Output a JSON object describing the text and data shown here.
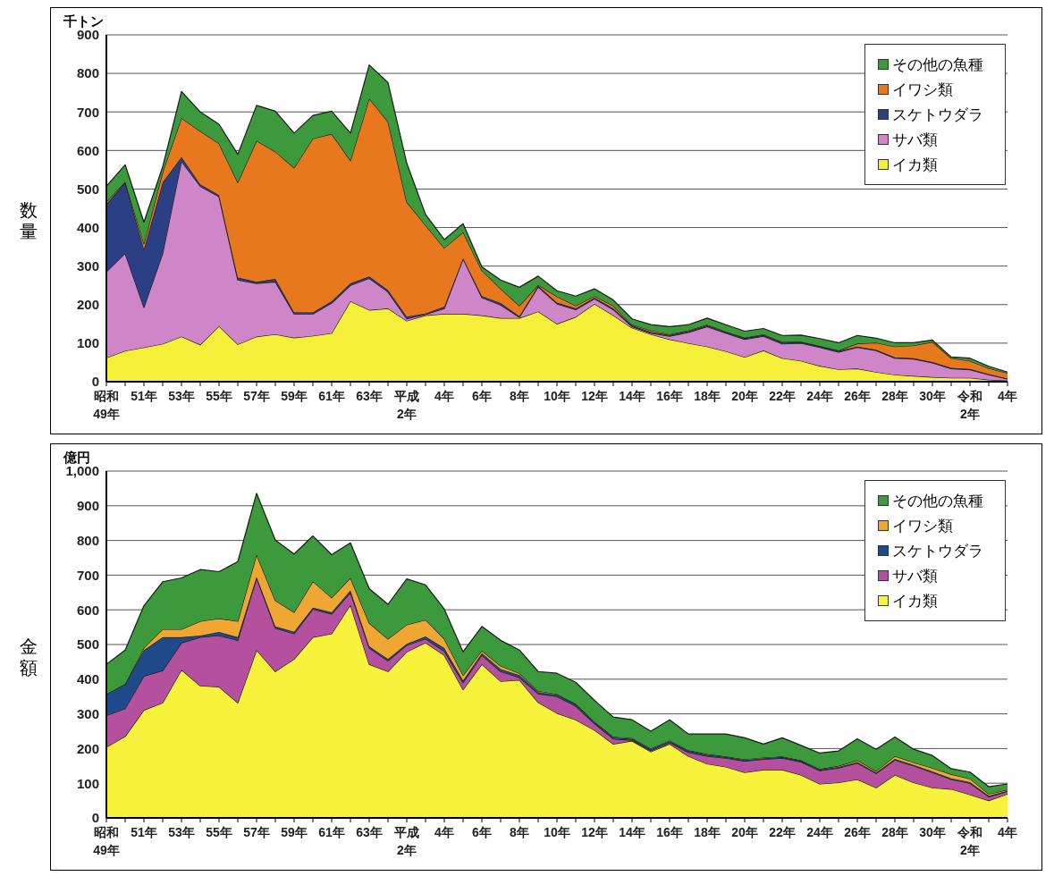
{
  "chart_data": [
    {
      "type": "area",
      "stacked": true,
      "ylabel": "数量",
      "annotations": [
        "千トン"
      ],
      "categories": [
        "昭和\n49年",
        null,
        "51年",
        null,
        "53年",
        null,
        "55年",
        null,
        "57年",
        null,
        "59年",
        null,
        "61年",
        null,
        "63年",
        null,
        "平成\n2年",
        null,
        "4年",
        null,
        "6年",
        null,
        "8年",
        null,
        "10年",
        null,
        "12年",
        null,
        "14年",
        null,
        "16年",
        null,
        "18年",
        null,
        "20年",
        null,
        "22年",
        null,
        "24年",
        null,
        "26年",
        null,
        "28年",
        null,
        "30年",
        null,
        "令和\n2年",
        null,
        "4年"
      ],
      "series": [
        {
          "name": "イカ類",
          "color": "#f5ef3a",
          "values": [
            62,
            80,
            89,
            98,
            117,
            96,
            144,
            97,
            117,
            123,
            114,
            119,
            126,
            209,
            186,
            190,
            158,
            172,
            176,
            176,
            172,
            165,
            165,
            182,
            150,
            168,
            202,
            172,
            140,
            123,
            110,
            100,
            91,
            79,
            64,
            81,
            61,
            54,
            41,
            32,
            34,
            25,
            18,
            15,
            12,
            10,
            10,
            5,
            3
          ]
        },
        {
          "name": "サバ類",
          "color": "#cf86c8",
          "values": [
            223,
            253,
            104,
            235,
            455,
            411,
            336,
            167,
            138,
            136,
            62,
            57,
            78,
            41,
            82,
            43,
            5,
            3,
            14,
            143,
            46,
            34,
            2,
            64,
            52,
            19,
            13,
            15,
            3,
            3,
            8,
            28,
            52,
            47,
            46,
            37,
            37,
            46,
            48,
            45,
            55,
            56,
            43,
            44,
            37,
            24,
            21,
            13,
            4
          ]
        },
        {
          "name": "スケトウダラ",
          "color": "#2b3f85",
          "values": [
            176,
            184,
            151,
            184,
            11,
            5,
            4,
            6,
            4,
            8,
            4,
            4,
            5,
            5,
            5,
            5,
            6,
            2,
            5,
            1,
            4,
            5,
            3,
            3,
            3,
            3,
            3,
            3,
            3,
            3,
            3,
            3,
            3,
            3,
            3,
            3,
            3,
            3,
            3,
            3,
            2,
            2,
            2,
            2,
            2,
            2,
            2,
            2,
            1
          ]
        },
        {
          "name": "イワシ類",
          "color": "#e8781e",
          "values": [
            6,
            2,
            14,
            27,
            101,
            138,
            134,
            247,
            366,
            330,
            375,
            451,
            434,
            319,
            462,
            437,
            297,
            229,
            152,
            68,
            67,
            37,
            27,
            2,
            16,
            7,
            4,
            7,
            2,
            4,
            2,
            2,
            2,
            1,
            1,
            2,
            2,
            1,
            1,
            1,
            8,
            18,
            28,
            33,
            52,
            25,
            21,
            15,
            14
          ]
        },
        {
          "name": "その他の魚種",
          "color": "#3c9a3c",
          "values": [
            40,
            44,
            56,
            14,
            69,
            50,
            50,
            73,
            92,
            105,
            90,
            60,
            59,
            71,
            87,
            101,
            101,
            28,
            22,
            22,
            9,
            23,
            48,
            23,
            15,
            25,
            19,
            15,
            15,
            15,
            20,
            15,
            17,
            18,
            17,
            15,
            17,
            17,
            19,
            20,
            21,
            12,
            10,
            7,
            5,
            3,
            7,
            5,
            3
          ]
        }
      ],
      "ylim": [
        0,
        900
      ],
      "yticks": [
        0,
        100,
        200,
        300,
        400,
        500,
        600,
        700,
        800,
        900
      ],
      "grid": "y",
      "legend": "top right"
    },
    {
      "type": "area",
      "stacked": true,
      "ylabel": "金額",
      "annotations": [
        "億円"
      ],
      "categories": [
        "昭和\n49年",
        null,
        "51年",
        null,
        "53年",
        null,
        "55年",
        null,
        "57年",
        null,
        "59年",
        null,
        "61年",
        null,
        "63年",
        null,
        "平成\n2年",
        null,
        "4年",
        null,
        "6年",
        null,
        "8年",
        null,
        "10年",
        null,
        "12年",
        null,
        "14年",
        null,
        "16年",
        null,
        "18年",
        null,
        "20年",
        null,
        "22年",
        null,
        "24年",
        null,
        "26年",
        null,
        "28年",
        null,
        "30年",
        null,
        "令和\n2年",
        null,
        "4年"
      ],
      "series": [
        {
          "name": "イカ類",
          "color": "#f7f23c",
          "values": [
            204,
            235,
            311,
            332,
            427,
            381,
            378,
            332,
            484,
            422,
            458,
            521,
            531,
            614,
            443,
            422,
            479,
            505,
            469,
            370,
            443,
            394,
            398,
            333,
            302,
            283,
            253,
            213,
            222,
            191,
            213,
            178,
            156,
            147,
            131,
            139,
            139,
            124,
            98,
            102,
            111,
            87,
            124,
            102,
            87,
            83,
            67,
            50,
            69
          ]
        },
        {
          "name": "サバ類",
          "color": "#b5509f",
          "values": [
            91,
            80,
            98,
            93,
            78,
            140,
            148,
            180,
            208,
            125,
            73,
            81,
            57,
            36,
            47,
            31,
            19,
            11,
            12,
            20,
            26,
            28,
            7,
            25,
            48,
            39,
            19,
            15,
            2,
            3,
            4,
            11,
            22,
            25,
            33,
            30,
            33,
            37,
            38,
            42,
            47,
            41,
            43,
            48,
            44,
            28,
            33,
            11,
            7
          ]
        },
        {
          "name": "スケトウダラ",
          "color": "#1f4a8a",
          "values": [
            62,
            71,
            75,
            96,
            16,
            5,
            10,
            9,
            3,
            5,
            6,
            4,
            5,
            6,
            5,
            5,
            4,
            7,
            9,
            6,
            6,
            7,
            7,
            5,
            5,
            5,
            4,
            4,
            4,
            4,
            4,
            4,
            4,
            3,
            3,
            3,
            3,
            3,
            3,
            3,
            3,
            3,
            3,
            3,
            3,
            3,
            3,
            3,
            2
          ]
        },
        {
          "name": "イワシ類",
          "color": "#f0a632",
          "values": [
            0,
            0,
            6,
            23,
            23,
            41,
            39,
            46,
            64,
            75,
            56,
            76,
            42,
            36,
            67,
            58,
            55,
            48,
            26,
            15,
            7,
            9,
            5,
            3,
            2,
            2,
            2,
            2,
            2,
            2,
            2,
            2,
            2,
            2,
            2,
            2,
            2,
            2,
            2,
            3,
            5,
            4,
            8,
            7,
            10,
            12,
            10,
            5,
            3
          ]
        },
        {
          "name": "その他の魚種",
          "color": "#3c9a3c",
          "values": [
            86,
            98,
            122,
            137,
            148,
            149,
            135,
            172,
            177,
            174,
            168,
            131,
            124,
            101,
            99,
            100,
            132,
            101,
            86,
            68,
            70,
            74,
            67,
            56,
            60,
            62,
            61,
            57,
            53,
            50,
            60,
            47,
            58,
            65,
            62,
            39,
            54,
            43,
            46,
            43,
            62,
            63,
            55,
            38,
            36,
            16,
            19,
            21,
            17
          ]
        }
      ],
      "ylim": [
        0,
        1000
      ],
      "yticks": [
        0,
        100,
        200,
        300,
        400,
        500,
        600,
        700,
        800,
        900,
        {
          "value": 1000,
          "label": "1,000"
        }
      ],
      "grid": "y",
      "legend": "top right"
    }
  ]
}
